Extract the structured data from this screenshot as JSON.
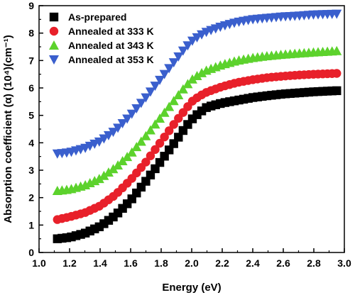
{
  "chart_data": {
    "type": "scatter",
    "title": "",
    "xlabel": "Energy (eV)",
    "ylabel": "Absorption coefficient (α) (10⁴)(cm⁻¹)",
    "xlim": [
      1.0,
      3.0
    ],
    "ylim": [
      0,
      9
    ],
    "xticks": [
      "1.0",
      "1.2",
      "1.4",
      "1.6",
      "1.8",
      "2.0",
      "2.2",
      "2.4",
      "2.6",
      "2.8",
      "3.0"
    ],
    "yticks": [
      "0",
      "1",
      "2",
      "3",
      "4",
      "5",
      "6",
      "7",
      "8",
      "9"
    ],
    "grid": false,
    "legend_position": "top-left",
    "series": [
      {
        "name": "As-prepared",
        "marker": "square",
        "color": "#000000",
        "x": [
          1.12,
          1.2,
          1.3,
          1.4,
          1.5,
          1.6,
          1.7,
          1.8,
          1.9,
          1.95,
          2.0,
          2.05,
          2.1,
          2.2,
          2.3,
          2.4,
          2.5,
          2.6,
          2.7,
          2.8,
          2.95
        ],
        "y": [
          0.5,
          0.55,
          0.7,
          0.95,
          1.35,
          1.9,
          2.6,
          3.35,
          4.1,
          4.5,
          4.85,
          5.1,
          5.3,
          5.45,
          5.55,
          5.65,
          5.72,
          5.78,
          5.82,
          5.86,
          5.9
        ]
      },
      {
        "name": "Annealed at 333 K",
        "marker": "circle",
        "color": "#e8202a",
        "x": [
          1.12,
          1.2,
          1.3,
          1.4,
          1.5,
          1.6,
          1.7,
          1.8,
          1.9,
          1.95,
          2.0,
          2.05,
          2.1,
          2.2,
          2.3,
          2.4,
          2.5,
          2.6,
          2.7,
          2.8,
          2.95
        ],
        "y": [
          1.2,
          1.3,
          1.45,
          1.7,
          2.1,
          2.65,
          3.3,
          4.05,
          4.8,
          5.15,
          5.5,
          5.7,
          5.85,
          6.05,
          6.2,
          6.3,
          6.38,
          6.43,
          6.47,
          6.5,
          6.53
        ]
      },
      {
        "name": "Annealed at 343 K",
        "marker": "triangle-up",
        "color": "#5cd22c",
        "x": [
          1.12,
          1.2,
          1.3,
          1.4,
          1.5,
          1.6,
          1.7,
          1.8,
          1.9,
          1.95,
          2.0,
          2.05,
          2.1,
          2.2,
          2.3,
          2.4,
          2.5,
          2.6,
          2.7,
          2.8,
          2.95
        ],
        "y": [
          2.25,
          2.3,
          2.45,
          2.7,
          3.1,
          3.6,
          4.25,
          4.95,
          5.65,
          6.0,
          6.3,
          6.5,
          6.65,
          6.85,
          7.0,
          7.1,
          7.17,
          7.22,
          7.26,
          7.3,
          7.35
        ]
      },
      {
        "name": "Annealed at 353 K",
        "marker": "triangle-down",
        "color": "#3a5fcd",
        "x": [
          1.12,
          1.2,
          1.3,
          1.4,
          1.5,
          1.6,
          1.7,
          1.8,
          1.9,
          1.95,
          2.0,
          2.05,
          2.1,
          2.2,
          2.3,
          2.4,
          2.5,
          2.6,
          2.7,
          2.8,
          2.95
        ],
        "y": [
          3.6,
          3.65,
          3.8,
          4.05,
          4.45,
          5.0,
          5.65,
          6.35,
          7.05,
          7.4,
          7.7,
          7.9,
          8.05,
          8.25,
          8.4,
          8.5,
          8.55,
          8.6,
          8.63,
          8.67,
          8.7
        ]
      }
    ]
  }
}
